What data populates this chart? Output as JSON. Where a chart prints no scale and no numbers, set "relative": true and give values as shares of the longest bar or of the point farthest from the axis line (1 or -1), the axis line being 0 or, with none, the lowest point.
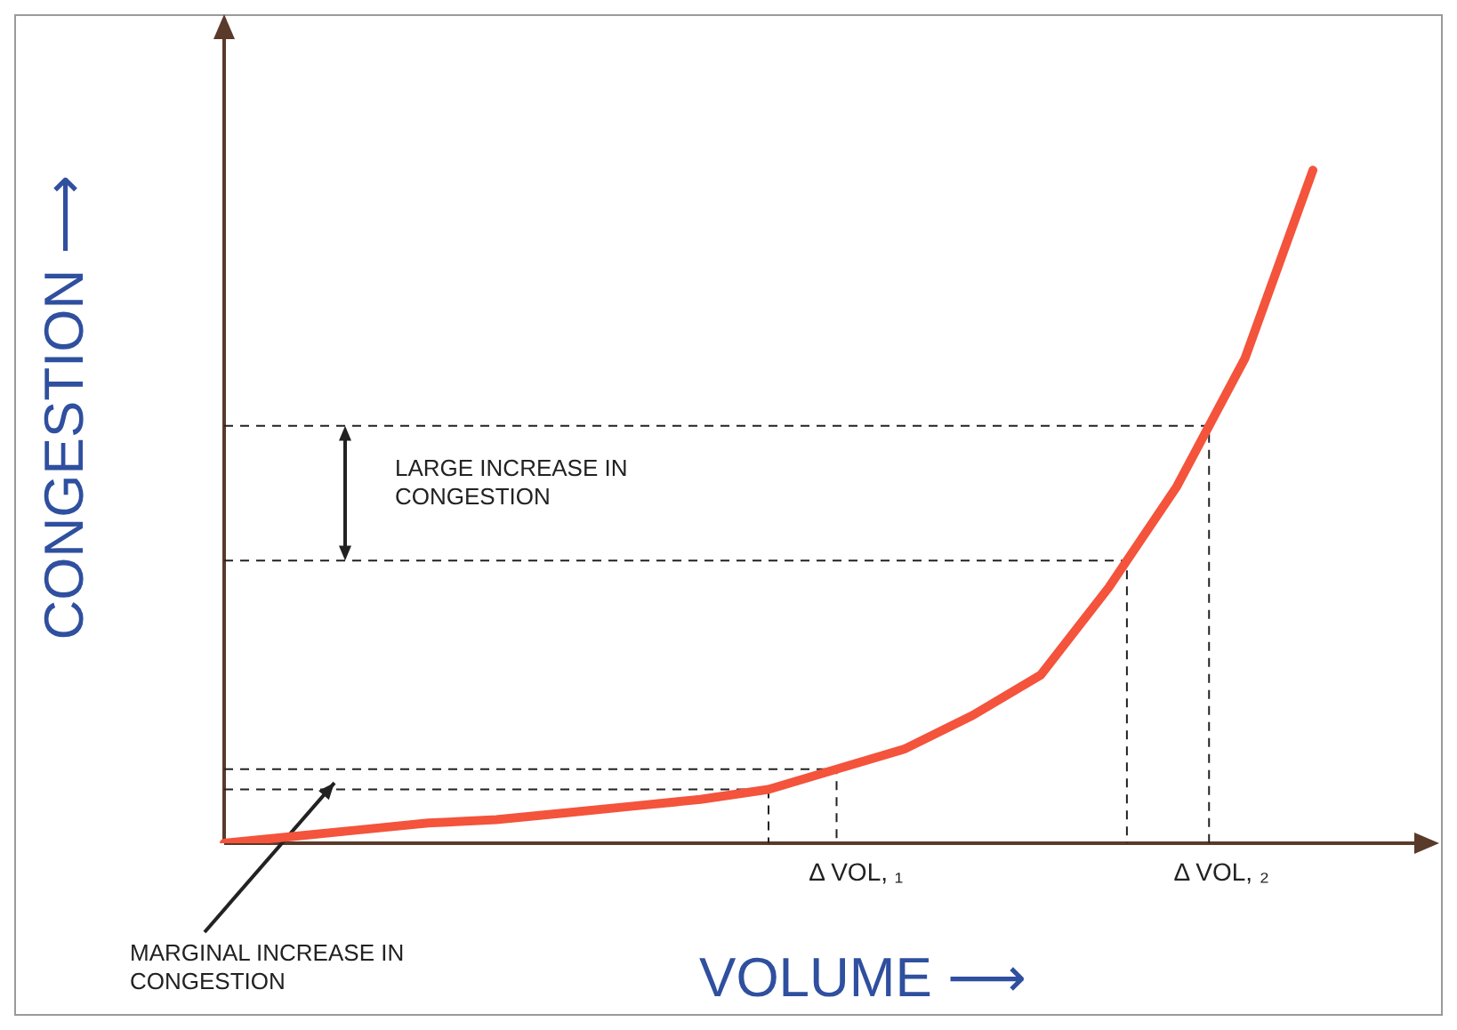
{
  "chart_data": {
    "type": "line",
    "xlabel": "VOLUME ⟶",
    "ylabel": "CONGESTION ⟶",
    "relative": true,
    "categories": [
      null,
      null,
      null,
      null,
      null,
      null,
      null,
      null,
      null,
      null,
      null,
      null,
      null,
      null,
      null,
      null,
      null
    ],
    "series": [
      {
        "color": "#f4533c",
        "values": [
          0,
          0.01,
          0.02,
          0.03,
          0.035,
          0.045,
          0.055,
          0.065,
          0.08,
          0.11,
          0.14,
          0.19,
          0.25,
          0.38,
          0.53,
          0.72,
          1
        ]
      }
    ],
    "ref_lines": [
      {
        "axis": "y",
        "value": 0.08,
        "line_style": "dashed"
      },
      {
        "axis": "y",
        "value": 0.11,
        "line_style": "dashed"
      },
      {
        "axis": "y",
        "value": 0.42,
        "line_style": "dashed"
      },
      {
        "axis": "y",
        "value": 0.62,
        "line_style": "dashed"
      }
    ],
    "annotations": [
      "LARGE INCREASE IN CONGESTION",
      "MARGINAL INCREASE IN CONGESTION",
      "Δ VOL, ₁",
      "Δ VOL, ₂"
    ]
  }
}
